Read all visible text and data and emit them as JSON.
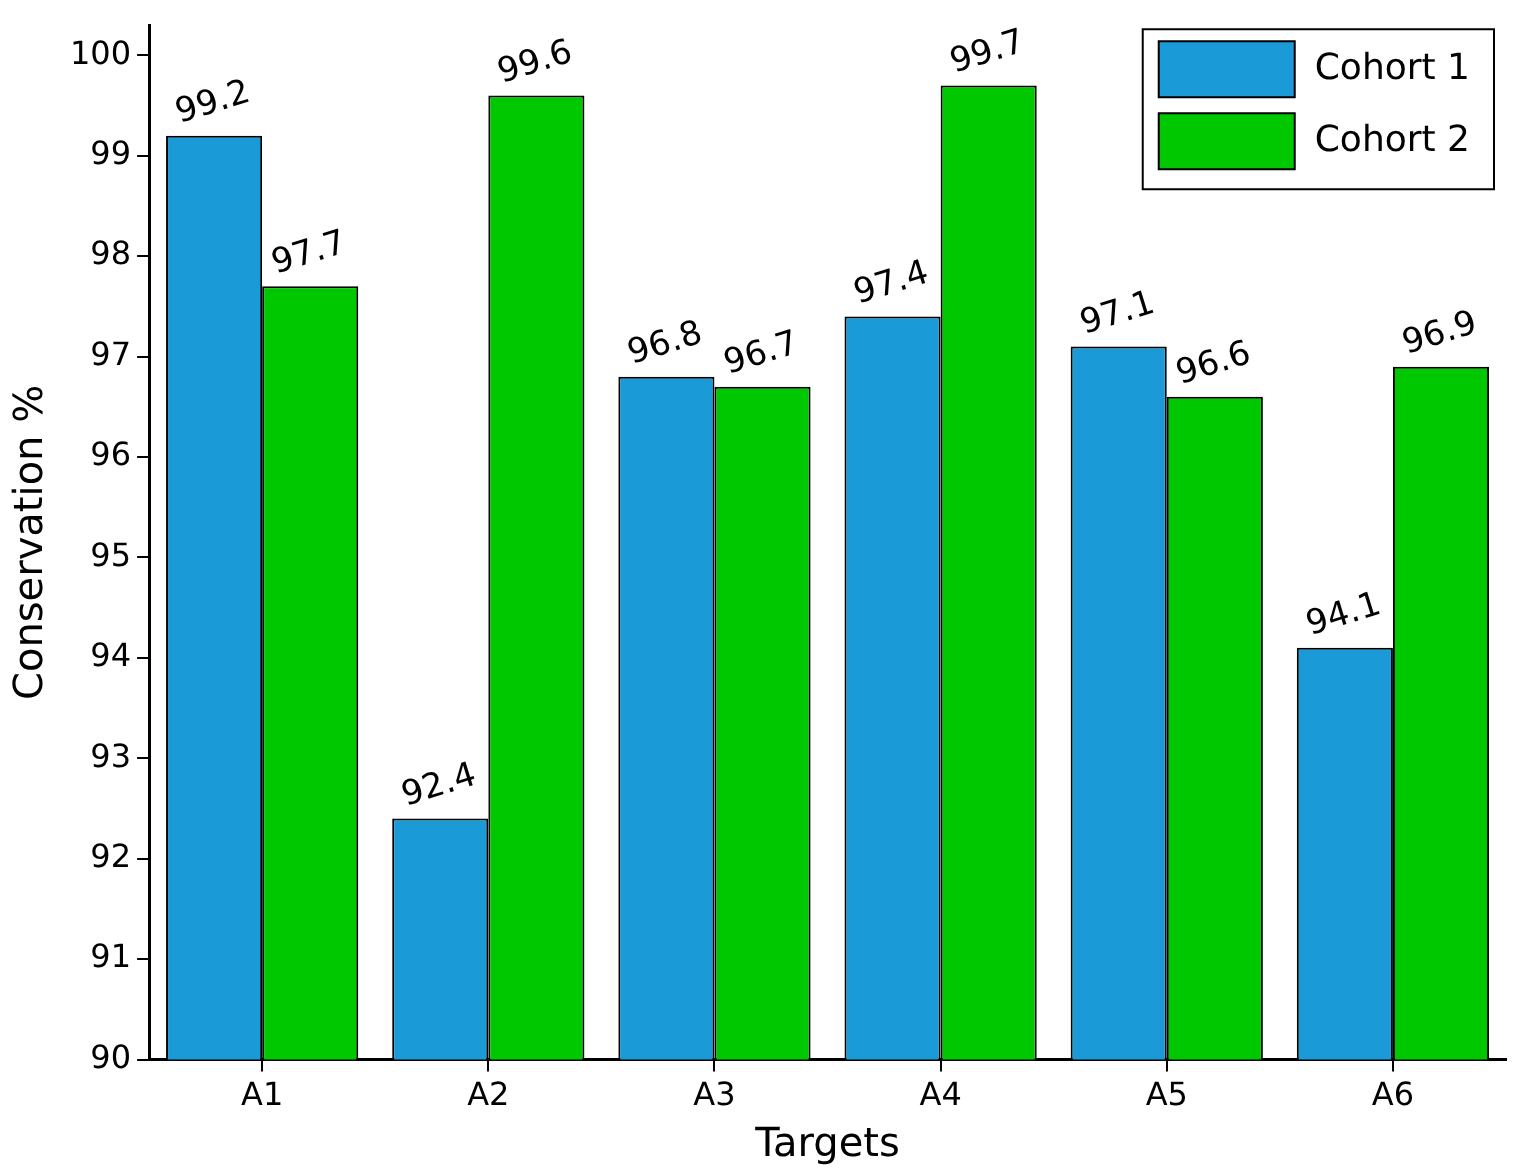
{
  "chart_data": {
    "type": "bar",
    "xlabel": "Targets",
    "ylabel": "Conservation %",
    "categories": [
      "A1",
      "A2",
      "A3",
      "A4",
      "A5",
      "A6"
    ],
    "series": [
      {
        "name": "Cohort 1",
        "color": "#1a9ad6",
        "values": [
          99.2,
          92.4,
          96.8,
          97.4,
          97.1,
          94.1
        ]
      },
      {
        "name": "Cohort 2",
        "color": "#00c800",
        "values": [
          97.7,
          99.6,
          96.7,
          99.7,
          96.6,
          96.9
        ]
      }
    ],
    "ylim": [
      90,
      100.3
    ],
    "yticks": [
      90,
      91,
      92,
      93,
      94,
      95,
      96,
      97,
      98,
      99,
      100
    ],
    "grid": false,
    "legend": "top right",
    "data_labels": true
  }
}
